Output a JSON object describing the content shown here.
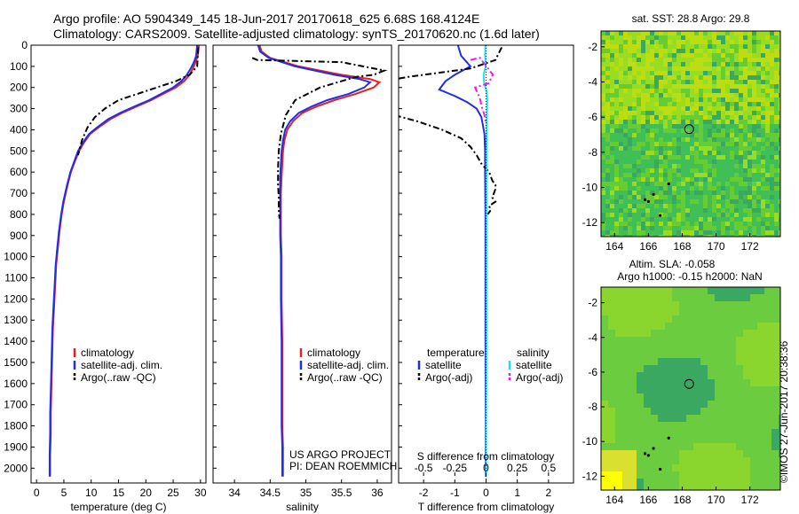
{
  "header": {
    "line1": "Argo profile: AO 5904349_145 18-Jun-2017 20170618_625 6.68S 168.4124E",
    "line2": "Climatology: CARS2009. Satellite-adjusted climatology: synTS_20170620.nc (1.6d later)"
  },
  "timestamp": "©IMOS 27-Jun-2017 20:38:36",
  "chart_data": [
    {
      "type": "line",
      "xlabel": "temperature (deg C)",
      "xlim": [
        -1,
        31
      ],
      "xticks": [
        0,
        5,
        10,
        15,
        20,
        25,
        30
      ],
      "ylim": [
        2070,
        0
      ],
      "yticks": [
        0,
        100,
        200,
        300,
        400,
        500,
        600,
        700,
        800,
        900,
        1000,
        1100,
        1200,
        1300,
        1400,
        1500,
        1600,
        1700,
        1800,
        1900,
        2000
      ],
      "legend": [
        "climatology",
        "satellite-adj. clim.",
        "Argo(..raw -QC)"
      ],
      "series": [
        {
          "name": "climatology",
          "color": "#e8201f",
          "style": "solid",
          "x": [
            29.7,
            29.5,
            29.1,
            28.6,
            28.0,
            27.0,
            25.5,
            23.2,
            21.0,
            18.3,
            15.7,
            13.5,
            11.3,
            9.8,
            8.7,
            7.8,
            7.0,
            6.3,
            5.7,
            5.0,
            4.6,
            4.2,
            3.9,
            3.6,
            3.4,
            3.2,
            3.0,
            2.9,
            2.8,
            2.7,
            2.6,
            2.6,
            2.5,
            2.5
          ],
          "y": [
            0,
            50,
            80,
            110,
            140,
            170,
            200,
            230,
            260,
            290,
            320,
            350,
            390,
            420,
            460,
            500,
            550,
            600,
            660,
            740,
            800,
            880,
            960,
            1040,
            1140,
            1240,
            1340,
            1440,
            1540,
            1640,
            1740,
            1840,
            1940,
            2040
          ]
        },
        {
          "name": "satellite-adj. clim.",
          "color": "#1f2fe8",
          "style": "solid",
          "x": [
            29.4,
            29.2,
            28.8,
            28.2,
            27.5,
            26.5,
            25.0,
            22.8,
            20.6,
            17.9,
            15.3,
            13.1,
            11.0,
            9.6,
            8.5,
            7.6,
            6.9,
            6.2,
            5.6,
            4.9,
            4.5,
            4.1,
            3.8,
            3.5,
            3.3,
            3.1,
            2.9,
            2.8,
            2.7,
            2.6,
            2.5,
            2.5,
            2.4,
            2.4
          ],
          "y": [
            0,
            50,
            80,
            110,
            140,
            170,
            200,
            230,
            260,
            290,
            320,
            350,
            390,
            420,
            460,
            500,
            550,
            600,
            660,
            740,
            800,
            880,
            960,
            1040,
            1140,
            1240,
            1340,
            1440,
            1540,
            1640,
            1740,
            1840,
            1940,
            2040
          ]
        },
        {
          "name": "Argo(..raw -QC)",
          "color": "#000000",
          "style": "dash",
          "x": [
            29.6,
            29.5,
            29.4,
            28.0,
            25.5,
            22.0,
            18.5,
            15.0,
            12.5,
            10.7,
            9.3,
            8.3,
            7.6
          ],
          "y": [
            10,
            50,
            100,
            140,
            170,
            200,
            230,
            260,
            300,
            340,
            390,
            450,
            520
          ]
        }
      ]
    },
    {
      "type": "line",
      "xlabel": "salinity",
      "xlim": [
        33.7,
        36.2
      ],
      "xticks": [
        34,
        34.5,
        35,
        35.5,
        36
      ],
      "ylim": [
        2070,
        0
      ],
      "legend": [
        "climatology",
        "satellite-adj. clim.",
        "Argo(..raw -QC)"
      ],
      "annotation": [
        "US ARGO PROJECT",
        "PI: DEAN ROEMMICH"
      ],
      "series": [
        {
          "name": "climatology",
          "color": "#e8201f",
          "style": "solid",
          "x": [
            34.35,
            34.38,
            34.5,
            34.9,
            35.5,
            35.9,
            36.03,
            35.95,
            35.7,
            35.4,
            35.15,
            34.95,
            34.82,
            34.74,
            34.7,
            34.68,
            34.67,
            34.66,
            34.65,
            34.65,
            34.65,
            34.66,
            34.66,
            34.67,
            34.67,
            34.67,
            34.68,
            34.68,
            34.68
          ],
          "y": [
            0,
            30,
            60,
            100,
            140,
            160,
            175,
            200,
            230,
            260,
            290,
            320,
            360,
            400,
            450,
            500,
            560,
            620,
            700,
            800,
            900,
            1000,
            1200,
            1400,
            1600,
            1800,
            1900,
            2000,
            2040
          ]
        },
        {
          "name": "satellite-adj. clim.",
          "color": "#1f2fe8",
          "style": "solid",
          "x": [
            34.33,
            34.36,
            34.48,
            34.85,
            35.4,
            35.75,
            35.9,
            35.82,
            35.6,
            35.3,
            35.08,
            34.9,
            34.78,
            34.71,
            34.68,
            34.66,
            34.65,
            34.64,
            34.64,
            34.64,
            34.64,
            34.65,
            34.65,
            34.66,
            34.66,
            34.66,
            34.67,
            34.67,
            34.67
          ],
          "y": [
            0,
            30,
            60,
            100,
            140,
            160,
            175,
            200,
            230,
            260,
            290,
            320,
            360,
            400,
            450,
            500,
            560,
            620,
            700,
            800,
            900,
            1000,
            1200,
            1400,
            1600,
            1800,
            1900,
            2000,
            2040
          ]
        },
        {
          "name": "Argo(..raw -QC)",
          "color": "#000000",
          "style": "dash",
          "x": [
            34.25,
            34.32,
            35.5,
            36.1,
            35.95,
            35.7,
            35.2,
            34.85,
            34.72,
            34.65,
            34.62,
            34.61,
            34.61,
            34.62,
            34.62,
            34.63
          ],
          "y": [
            60,
            70,
            80,
            120,
            140,
            150,
            200,
            260,
            330,
            420,
            500,
            580,
            660,
            720,
            780,
            820
          ]
        }
      ]
    },
    {
      "type": "line",
      "xlabel": "T difference from climatology",
      "xlabel_top": "S difference from climatology",
      "xlim": [
        -2.8,
        2.8
      ],
      "xticks": [
        -2,
        -1,
        0,
        1,
        2
      ],
      "xticks_top": [
        -0.5,
        -0.25,
        0,
        0.25,
        0.5
      ],
      "ylim": [
        2070,
        0
      ],
      "legend_groups": [
        "temperature",
        "salinity"
      ],
      "legend": [
        "satellite",
        "Argo(-adj)",
        "satellite",
        "Argo(-adj)"
      ],
      "series": [
        {
          "name": "temperature satellite",
          "color": "#1f2fe8",
          "style": "solid",
          "x": [
            -0.9,
            -0.8,
            -0.5,
            -1.0,
            -1.3,
            -1.5,
            -1.0,
            -0.6,
            -0.3,
            -0.15,
            -0.1,
            -0.05,
            -0.03,
            -0.03,
            -0.02,
            -0.02,
            -0.02,
            -0.01,
            -0.01
          ],
          "y": [
            0,
            50,
            100,
            140,
            170,
            210,
            240,
            270,
            300,
            340,
            380,
            420,
            500,
            600,
            800,
            1000,
            1400,
            1800,
            2040
          ]
        },
        {
          "name": "temperature Argo(-adj)",
          "color": "#000000",
          "style": "dash",
          "x": [
            0.5,
            0.4,
            0.3,
            -0.5,
            -2.5,
            -4.0,
            -5.0,
            -4.5,
            -3.2,
            -2.2,
            -1.4,
            -0.8,
            -0.5,
            -0.3,
            -0.15,
            0.1,
            0.2,
            0.3,
            0.3,
            0.25,
            0.2,
            0.3,
            0.1,
            0.15,
            0.05
          ],
          "y": [
            10,
            40,
            70,
            110,
            150,
            190,
            230,
            280,
            320,
            360,
            400,
            440,
            480,
            520,
            560,
            600,
            640,
            660,
            680,
            700,
            720,
            740,
            760,
            780,
            800
          ]
        },
        {
          "name": "salinity satellite",
          "color": "#22e0e8",
          "style": "solid",
          "x": [
            -0.02,
            -0.03,
            -0.01,
            -0.08,
            -0.06,
            0.02,
            0.04,
            0.03,
            0.02,
            0.02,
            0.02,
            0.01,
            0.01,
            0.01,
            0.01,
            0.01,
            0.0,
            0.0
          ],
          "y": [
            0,
            50,
            100,
            140,
            180,
            220,
            260,
            300,
            350,
            400,
            450,
            500,
            600,
            800,
            1000,
            1400,
            1800,
            2040
          ]
        },
        {
          "name": "salinity Argo(-adj)",
          "color": "#e41fe8",
          "style": "dash",
          "x": [
            -0.5,
            -0.2,
            0.22,
            0.08,
            -0.35,
            -0.2,
            -0.12,
            -0.05,
            -0.02
          ],
          "y": [
            70,
            60,
            140,
            180,
            200,
            250,
            300,
            330,
            360
          ]
        }
      ]
    },
    {
      "type": "heatmap",
      "title": "sat. SST: 28.8 Argo: 29.8",
      "xlim": [
        163.2,
        173.8
      ],
      "ylim": [
        -12.8,
        -1.1
      ],
      "xticks": [
        164,
        166,
        168,
        170,
        172
      ],
      "yticks": [
        -2,
        -4,
        -6,
        -8,
        -10,
        -12
      ],
      "profile_marker": [
        168.41,
        -6.68
      ],
      "colors": [
        "#3fbf55",
        "#66cc33",
        "#99dd22",
        "#bbdd11",
        "#3aa860"
      ]
    },
    {
      "type": "heatmap",
      "title": [
        "Altim. SLA: -0.058",
        "Argo h1000: -0.15 h2000: NaN"
      ],
      "xlim": [
        163.2,
        173.8
      ],
      "ylim": [
        -12.8,
        -1.1
      ],
      "xticks": [
        164,
        166,
        168,
        170,
        172
      ],
      "yticks": [
        -2,
        -4,
        -6,
        -8,
        -10,
        -12
      ],
      "profile_marker": [
        168.41,
        -6.68
      ],
      "colors": [
        "#6ccc40",
        "#8ad62e",
        "#3aa860",
        "#d9e030",
        "#ffff00"
      ]
    }
  ]
}
